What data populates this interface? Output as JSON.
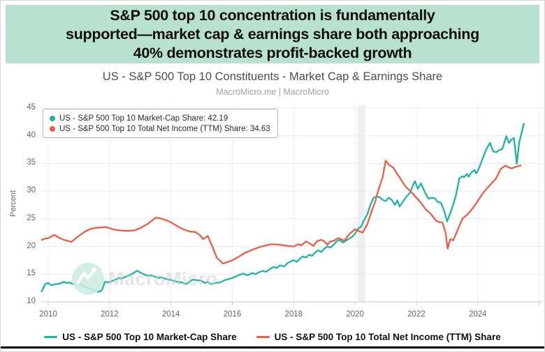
{
  "header": {
    "lines": [
      "S&P 500 top 10 concentration is fundamentally",
      "supported—market cap & earnings share both approaching",
      "40% demonstrates profit-backed growth"
    ]
  },
  "colors": {
    "banner_bg": "#b8e1d1",
    "market_cap_series": "#1cb5a3",
    "net_income_series": "#ee5c43",
    "recession_band": "#e7e7e7"
  },
  "chart": {
    "title": "US - S&P 500 Top 10 Constituents - Market Cap & Earnings Share",
    "subtitle": "MacroMicro.me | MacroMicro",
    "watermark_text": "MacroMicro",
    "y_axis_title": "Percent",
    "legend_box": {
      "items": [
        {
          "text": "US - S&P 500 Top 10 Market-Cap Share: 42.19",
          "color": "#1cb5a3"
        },
        {
          "text": "US - S&P 500 Top 10 Total Net Income (TTM) Share: 34.63",
          "color": "#ee5c43"
        }
      ]
    },
    "bottom_legend": [
      {
        "label": "US - S&P 500 Top 10 Market-Cap Share",
        "color": "#1cb5a3"
      },
      {
        "label": "US - S&P 500 Top 10 Total Net Income (TTM) Share",
        "color": "#ee5c43"
      }
    ]
  },
  "chart_data": {
    "type": "line",
    "title": "US - S&P 500 Top 10 Constituents - Market Cap & Earnings Share",
    "subtitle": "MacroMicro.me | MacroMicro",
    "xlabel": "",
    "ylabel": "Percent",
    "xlim": [
      2009.75,
      2026.1
    ],
    "ylim": [
      10,
      45.5
    ],
    "y_ticks": [
      10,
      15,
      20,
      25,
      30,
      35,
      40,
      45
    ],
    "x_ticks": [
      2010,
      2012,
      2014,
      2016,
      2018,
      2020,
      2022,
      2024
    ],
    "x_grid": [
      2010,
      2012,
      2014,
      2016,
      2018,
      2020,
      2022,
      2024,
      2026
    ],
    "grid": true,
    "legend_position": "top-left-box and bottom",
    "recession_band": {
      "from": 2020.08,
      "to": 2020.33
    },
    "series": [
      {
        "name": "US - S&P 500 Top 10 Market-Cap Share",
        "color": "#1cb5a3",
        "latest": "42.19",
        "points": [
          [
            2009.79,
            11.9
          ],
          [
            2009.9,
            13.2
          ],
          [
            2010.0,
            13.4
          ],
          [
            2010.1,
            13.0
          ],
          [
            2010.25,
            13.2
          ],
          [
            2010.4,
            13.3
          ],
          [
            2010.5,
            13.6
          ],
          [
            2010.6,
            13.4
          ],
          [
            2010.7,
            13.5
          ],
          [
            2010.8,
            13.2
          ],
          [
            2010.95,
            13.3
          ],
          [
            2011.1,
            13.0
          ],
          [
            2011.2,
            12.8
          ],
          [
            2011.3,
            12.5
          ],
          [
            2011.45,
            12.2
          ],
          [
            2011.55,
            11.9
          ],
          [
            2011.65,
            11.8
          ],
          [
            2011.75,
            12.1
          ],
          [
            2011.85,
            13.6
          ],
          [
            2011.95,
            13.5
          ],
          [
            2012.1,
            13.8
          ],
          [
            2012.2,
            14.0
          ],
          [
            2012.3,
            14.3
          ],
          [
            2012.4,
            14.2
          ],
          [
            2012.5,
            14.5
          ],
          [
            2012.65,
            14.8
          ],
          [
            2012.75,
            15.1
          ],
          [
            2012.9,
            15.6
          ],
          [
            2013.0,
            15.3
          ],
          [
            2013.15,
            14.9
          ],
          [
            2013.25,
            14.7
          ],
          [
            2013.35,
            14.8
          ],
          [
            2013.5,
            14.5
          ],
          [
            2013.6,
            14.3
          ],
          [
            2013.7,
            14.4
          ],
          [
            2013.85,
            14.1
          ],
          [
            2013.95,
            14.0
          ],
          [
            2014.1,
            13.8
          ],
          [
            2014.2,
            13.6
          ],
          [
            2014.35,
            13.5
          ],
          [
            2014.5,
            13.2
          ],
          [
            2014.6,
            13.6
          ],
          [
            2014.7,
            14.0
          ],
          [
            2014.85,
            13.9
          ],
          [
            2015.0,
            13.8
          ],
          [
            2015.1,
            13.4
          ],
          [
            2015.2,
            13.6
          ],
          [
            2015.3,
            13.2
          ],
          [
            2015.45,
            13.4
          ],
          [
            2015.6,
            13.5
          ],
          [
            2015.75,
            13.9
          ],
          [
            2016.0,
            14.3
          ],
          [
            2016.2,
            14.8
          ],
          [
            2016.35,
            15.1
          ],
          [
            2016.5,
            14.8
          ],
          [
            2016.65,
            15.2
          ],
          [
            2016.75,
            15.0
          ],
          [
            2016.9,
            15.4
          ],
          [
            2017.0,
            15.6
          ],
          [
            2017.1,
            15.4
          ],
          [
            2017.25,
            16.0
          ],
          [
            2017.35,
            16.3
          ],
          [
            2017.45,
            16.1
          ],
          [
            2017.55,
            16.6
          ],
          [
            2017.7,
            16.4
          ],
          [
            2017.8,
            17.0
          ],
          [
            2017.9,
            17.3
          ],
          [
            2018.0,
            17.5
          ],
          [
            2018.1,
            17.2
          ],
          [
            2018.2,
            17.8
          ],
          [
            2018.3,
            18.2
          ],
          [
            2018.4,
            18.0
          ],
          [
            2018.5,
            18.5
          ],
          [
            2018.6,
            18.3
          ],
          [
            2018.7,
            18.9
          ],
          [
            2018.8,
            19.3
          ],
          [
            2018.9,
            19.0
          ],
          [
            2019.0,
            19.6
          ],
          [
            2019.1,
            20.0
          ],
          [
            2019.2,
            19.8
          ],
          [
            2019.3,
            20.3
          ],
          [
            2019.4,
            20.9
          ],
          [
            2019.5,
            21.2
          ],
          [
            2019.6,
            20.7
          ],
          [
            2019.7,
            21.0
          ],
          [
            2019.8,
            21.4
          ],
          [
            2019.9,
            21.7
          ],
          [
            2020.0,
            22.3
          ],
          [
            2020.1,
            23.2
          ],
          [
            2020.2,
            23.6
          ],
          [
            2020.3,
            24.8
          ],
          [
            2020.4,
            25.8
          ],
          [
            2020.5,
            27.5
          ],
          [
            2020.6,
            28.8
          ],
          [
            2020.7,
            29.0
          ],
          [
            2020.8,
            28.9
          ],
          [
            2020.9,
            28.4
          ],
          [
            2021.0,
            28.2
          ],
          [
            2021.1,
            28.8
          ],
          [
            2021.2,
            28.4
          ],
          [
            2021.3,
            27.5
          ],
          [
            2021.38,
            28.3
          ],
          [
            2021.45,
            27.2
          ],
          [
            2021.55,
            28.0
          ],
          [
            2021.65,
            28.8
          ],
          [
            2021.8,
            29.8
          ],
          [
            2021.9,
            31.2
          ],
          [
            2021.95,
            31.8
          ],
          [
            2022.05,
            30.4
          ],
          [
            2022.15,
            31.4
          ],
          [
            2022.3,
            29.5
          ],
          [
            2022.4,
            28.6
          ],
          [
            2022.5,
            28.8
          ],
          [
            2022.6,
            28.7
          ],
          [
            2022.7,
            28.0
          ],
          [
            2022.8,
            27.9
          ],
          [
            2022.9,
            26.5
          ],
          [
            2023.0,
            24.5
          ],
          [
            2023.1,
            26.0
          ],
          [
            2023.2,
            27.5
          ],
          [
            2023.3,
            29.5
          ],
          [
            2023.4,
            32.3
          ],
          [
            2023.5,
            32.7
          ],
          [
            2023.55,
            32.5
          ],
          [
            2023.65,
            33.1
          ],
          [
            2023.7,
            32.6
          ],
          [
            2023.8,
            33.4
          ],
          [
            2023.9,
            33.8
          ],
          [
            2023.95,
            33.2
          ],
          [
            2024.0,
            33.6
          ],
          [
            2024.1,
            35.0
          ],
          [
            2024.2,
            36.5
          ],
          [
            2024.3,
            37.8
          ],
          [
            2024.4,
            38.7
          ],
          [
            2024.5,
            37.2
          ],
          [
            2024.6,
            37.0
          ],
          [
            2024.7,
            37.4
          ],
          [
            2024.8,
            37.6
          ],
          [
            2024.93,
            39.9
          ],
          [
            2025.02,
            38.7
          ],
          [
            2025.1,
            39.3
          ],
          [
            2025.18,
            39.6
          ],
          [
            2025.27,
            34.9
          ],
          [
            2025.35,
            38.8
          ],
          [
            2025.42,
            40.3
          ],
          [
            2025.5,
            42.19
          ]
        ]
      },
      {
        "name": "US - S&P 500 Top 10 Total Net Income (TTM) Share",
        "color": "#ee5c43",
        "latest": "34.63",
        "points": [
          [
            2009.79,
            21.2
          ],
          [
            2009.9,
            21.4
          ],
          [
            2010.0,
            21.5
          ],
          [
            2010.2,
            22.1
          ],
          [
            2010.35,
            21.6
          ],
          [
            2010.5,
            21.2
          ],
          [
            2010.65,
            21.0
          ],
          [
            2010.75,
            20.8
          ],
          [
            2011.0,
            21.9
          ],
          [
            2011.2,
            22.7
          ],
          [
            2011.4,
            23.2
          ],
          [
            2011.6,
            23.4
          ],
          [
            2011.9,
            23.5
          ],
          [
            2012.1,
            23.1
          ],
          [
            2012.3,
            22.9
          ],
          [
            2012.55,
            22.8
          ],
          [
            2012.8,
            22.9
          ],
          [
            2013.0,
            23.3
          ],
          [
            2013.25,
            24.1
          ],
          [
            2013.5,
            25.2
          ],
          [
            2013.7,
            25.0
          ],
          [
            2013.95,
            24.5
          ],
          [
            2014.2,
            23.7
          ],
          [
            2014.4,
            23.1
          ],
          [
            2014.6,
            22.7
          ],
          [
            2014.8,
            22.6
          ],
          [
            2014.95,
            22.0
          ],
          [
            2015.05,
            21.3
          ],
          [
            2015.2,
            21.9
          ],
          [
            2015.35,
            20.0
          ],
          [
            2015.5,
            17.9
          ],
          [
            2015.7,
            16.9
          ],
          [
            2016.0,
            17.5
          ],
          [
            2016.2,
            18.1
          ],
          [
            2016.4,
            18.8
          ],
          [
            2016.65,
            19.4
          ],
          [
            2016.9,
            19.9
          ],
          [
            2017.1,
            20.2
          ],
          [
            2017.3,
            20.4
          ],
          [
            2017.55,
            20.3
          ],
          [
            2017.8,
            20.1
          ],
          [
            2018.0,
            20.0
          ],
          [
            2018.15,
            20.4
          ],
          [
            2018.25,
            20.2
          ],
          [
            2018.4,
            20.9
          ],
          [
            2018.5,
            20.6
          ],
          [
            2018.65,
            20.1
          ],
          [
            2018.75,
            20.9
          ],
          [
            2018.9,
            21.2
          ],
          [
            2019.0,
            20.9
          ],
          [
            2019.1,
            20.3
          ],
          [
            2019.2,
            20.9
          ],
          [
            2019.3,
            21.0
          ],
          [
            2019.45,
            21.5
          ],
          [
            2019.55,
            21.3
          ],
          [
            2019.65,
            21.0
          ],
          [
            2019.75,
            21.8
          ],
          [
            2019.85,
            22.4
          ],
          [
            2020.0,
            23.1
          ],
          [
            2020.15,
            22.7
          ],
          [
            2020.25,
            22.5
          ],
          [
            2020.4,
            24.0
          ],
          [
            2020.55,
            26.5
          ],
          [
            2020.65,
            28.0
          ],
          [
            2020.75,
            30.0
          ],
          [
            2020.9,
            32.5
          ],
          [
            2021.0,
            35.5
          ],
          [
            2021.1,
            34.8
          ],
          [
            2021.25,
            34.2
          ],
          [
            2021.35,
            33.3
          ],
          [
            2021.45,
            32.5
          ],
          [
            2021.55,
            31.6
          ],
          [
            2021.65,
            30.8
          ],
          [
            2021.8,
            30.0
          ],
          [
            2021.9,
            29.4
          ],
          [
            2022.0,
            28.8
          ],
          [
            2022.1,
            28.2
          ],
          [
            2022.2,
            27.5
          ],
          [
            2022.3,
            26.7
          ],
          [
            2022.45,
            26.0
          ],
          [
            2022.55,
            25.3
          ],
          [
            2022.65,
            24.6
          ],
          [
            2022.75,
            24.4
          ],
          [
            2022.85,
            24.3
          ],
          [
            2022.95,
            22.5
          ],
          [
            2023.02,
            19.6
          ],
          [
            2023.1,
            21.3
          ],
          [
            2023.2,
            21.1
          ],
          [
            2023.3,
            22.4
          ],
          [
            2023.4,
            23.7
          ],
          [
            2023.5,
            25.0
          ],
          [
            2023.65,
            25.7
          ],
          [
            2023.75,
            26.3
          ],
          [
            2023.9,
            27.4
          ],
          [
            2024.0,
            28.2
          ],
          [
            2024.15,
            29.5
          ],
          [
            2024.3,
            30.5
          ],
          [
            2024.45,
            31.4
          ],
          [
            2024.6,
            32.3
          ],
          [
            2024.75,
            34.0
          ],
          [
            2024.9,
            34.6
          ],
          [
            2025.0,
            34.3
          ],
          [
            2025.1,
            34.1
          ],
          [
            2025.25,
            34.4
          ],
          [
            2025.4,
            34.63
          ]
        ]
      }
    ]
  }
}
